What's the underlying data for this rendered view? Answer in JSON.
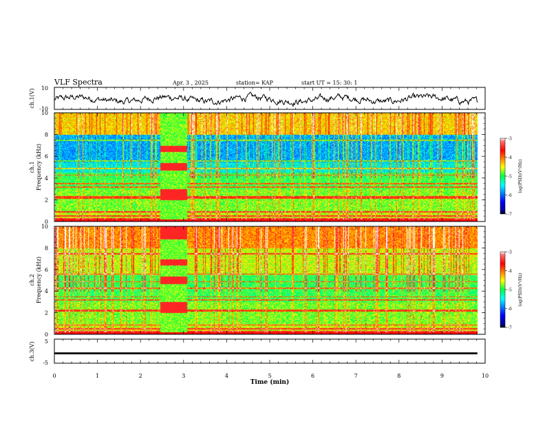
{
  "header": {
    "title": "VLF Spectra",
    "date": "Apr. 3  , 2025",
    "station": "station= KAP",
    "start": "start  UT  =   15: 30: 1"
  },
  "chart_data": [
    {
      "type": "line",
      "panel": "ch1-waveform",
      "ylabel": "ch.1(V)",
      "ylim": [
        -10,
        10
      ],
      "y_ticks": [
        "10",
        "-10"
      ],
      "xlim": [
        0,
        10
      ],
      "x_extent_min": 9.82,
      "typical_amplitude": [
        -6,
        4
      ]
    },
    {
      "type": "heatmap",
      "panel": "ch1-spectrogram",
      "ylabel_line1": "ch.1",
      "ylabel_line2": "Frequency (kHz)",
      "ylim": [
        0,
        10
      ],
      "y_ticks": [
        "0",
        "2",
        "4",
        "6",
        "8",
        "10"
      ],
      "xlim": [
        0,
        10
      ],
      "x_extent_min": 9.82,
      "colorbar": {
        "label": "log(PSD)(V²/Hz)",
        "range": [
          -7,
          -3
        ],
        "ticks": [
          "-3",
          "-4",
          "-5",
          "-6",
          "-7"
        ]
      }
    },
    {
      "type": "heatmap",
      "panel": "ch2-spectrogram",
      "ylabel_line1": "ch.2",
      "ylabel_line2": "Frequency (kHz)",
      "ylim": [
        0,
        10
      ],
      "y_ticks": [
        "0",
        "2",
        "4",
        "6",
        "8",
        "10"
      ],
      "xlim": [
        0,
        10
      ],
      "x_extent_min": 9.82,
      "colorbar": {
        "label": "log(PSD)(V²/Hz)",
        "range": [
          -7,
          -3
        ],
        "ticks": [
          "-3",
          "-4",
          "-5",
          "-6",
          "-7"
        ]
      }
    },
    {
      "type": "line",
      "panel": "ch3-waveform",
      "ylabel": "ch.3(V)",
      "ylim": [
        -5,
        5
      ],
      "y_ticks": [
        "5",
        "-5"
      ],
      "xlim": [
        0,
        10
      ],
      "x_extent_min": 9.82,
      "signal_level": [
        -1.3,
        -0.5
      ],
      "xlabel": "Time  (min)",
      "x_ticks": [
        "0",
        "1",
        "2",
        "3",
        "4",
        "5",
        "6",
        "7",
        "8",
        "9",
        "10"
      ]
    }
  ]
}
